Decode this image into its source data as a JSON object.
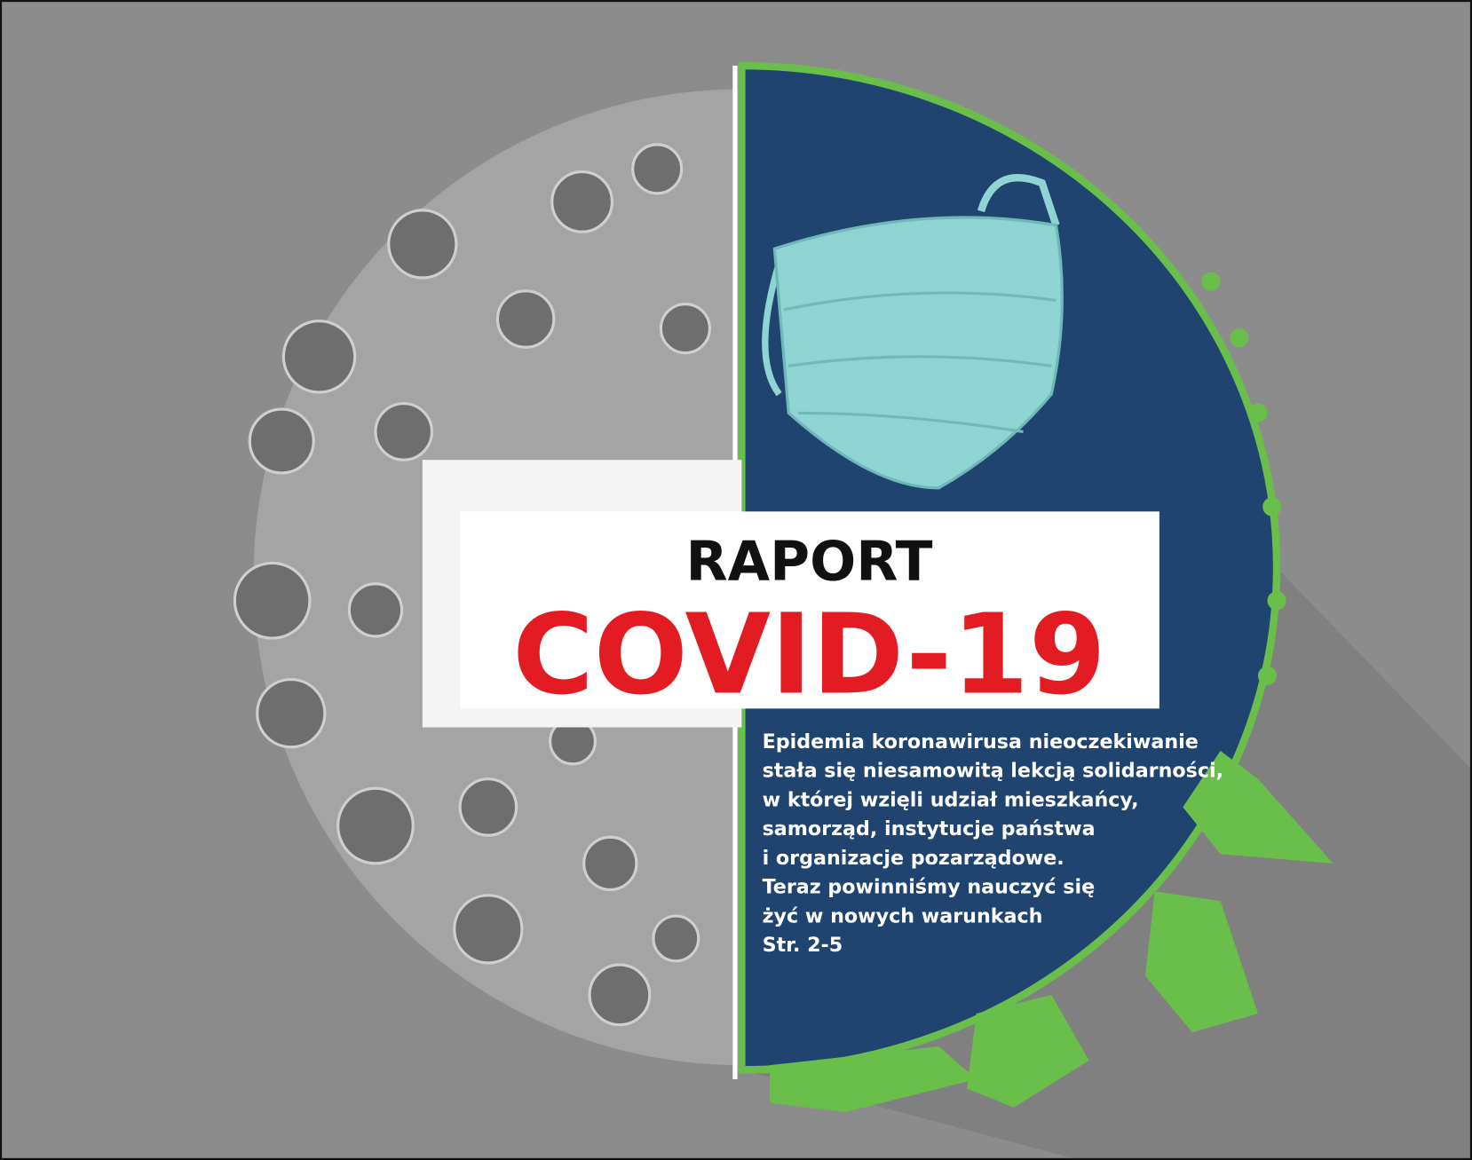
{
  "title": "RAPORT",
  "headline": "COVID-19",
  "text_lines": [
    "Epidemia koronawirusa nieoczekiwanie",
    "stała się niesamowitą lekcją solidarności,",
    "w której wzięli udział mieszkańcy,",
    "samorząd, instytucje państwa",
    "i organizacje pozarządowe.",
    "Teraz powinniśmy nauczyć się",
    "żyć w nowych warunkach",
    "Str. 2-5"
  ]
}
